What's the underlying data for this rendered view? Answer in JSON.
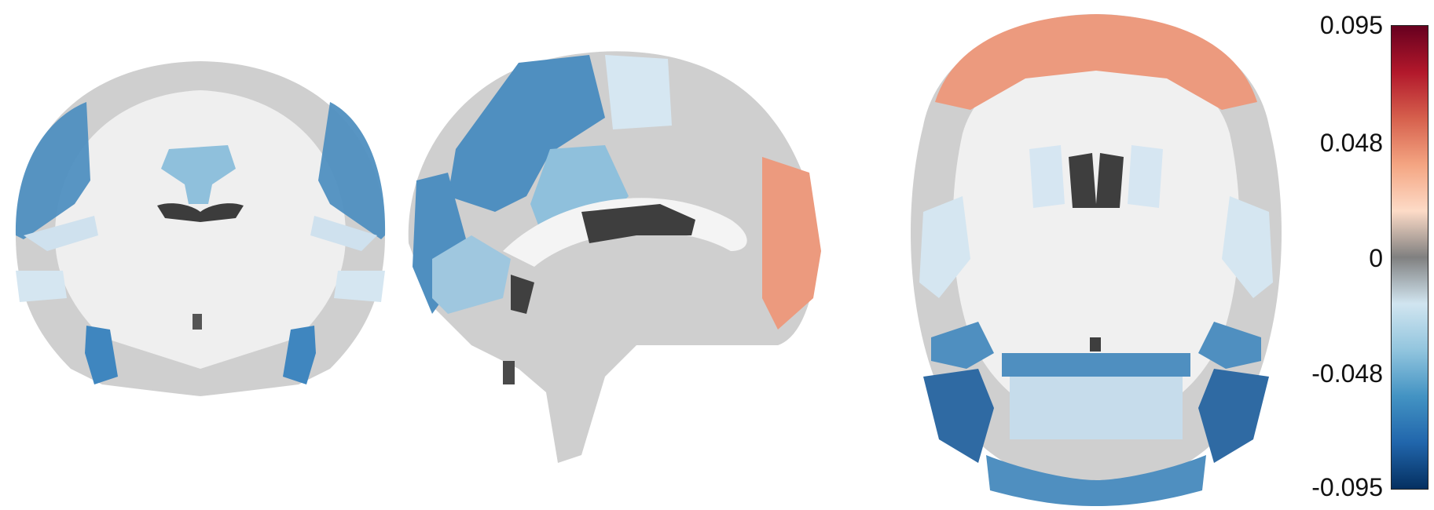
{
  "colorbar": {
    "ticks": [
      "0.095",
      "0.048",
      "0",
      "-0.048",
      "-0.095"
    ],
    "stops": [
      {
        "c": "#67001f"
      },
      {
        "c": "#b2182b"
      },
      {
        "c": "#d6604d"
      },
      {
        "c": "#f4a582"
      },
      {
        "c": "#fddbc7"
      },
      {
        "c": "#808080"
      },
      {
        "c": "#d1e5f0"
      },
      {
        "c": "#92c5de"
      },
      {
        "c": "#4393c3"
      },
      {
        "c": "#2166ac"
      },
      {
        "c": "#053061"
      }
    ]
  },
  "views": {
    "coronal": "coronal-slice",
    "sagittal": "sagittal-slice",
    "axial": "axial-slice"
  },
  "colors": {
    "brain_gray": "#c8c8c8",
    "white_matter": "#f2f2f2",
    "ventricle": "#404040",
    "blue_dark": "#2f6aa3",
    "blue_mid": "#4f93c3",
    "blue_light": "#92c3dd",
    "blue_pale": "#d5e6f1",
    "salmon": "#ec9a7e"
  }
}
